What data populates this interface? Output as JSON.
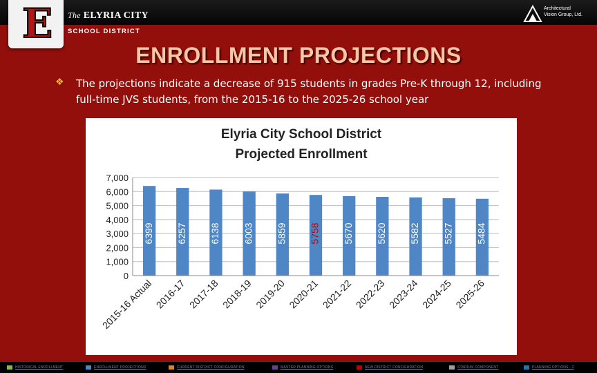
{
  "header": {
    "logo_letter": "E",
    "district_the": "The",
    "district_name": "ELYRIA CITY",
    "district_sub": "SCHOOL DISTRICT",
    "firm_line1": "Architectural",
    "firm_line2": "Vision Group, Ltd."
  },
  "slide": {
    "title": "ENROLLMENT PROJECTIONS",
    "bullet": "The projections indicate a decrease of 915 students in grades Pre-K through 12, including full-time JVS students, from the 2015-16 to the 2025-26 school year"
  },
  "chart_data": {
    "type": "bar",
    "title_line1": "Elyria City School District",
    "title_line2": "Projected Enrollment",
    "categories": [
      "2015-16 Actual",
      "2016-17",
      "2017-18",
      "2018-19",
      "2019-20",
      "2020-21",
      "2021-22",
      "2022-23",
      "2023-24",
      "2024-25",
      "2025-26"
    ],
    "values": [
      6399,
      6257,
      6138,
      6003,
      5859,
      5758,
      5670,
      5620,
      5582,
      5527,
      5484
    ],
    "data_labels": [
      "6399",
      "6257",
      "6138",
      "6003",
      "5859",
      "5758",
      "5670",
      "5620",
      "5582",
      "5527",
      "5484"
    ],
    "ylim": [
      0,
      7000
    ],
    "yticks": [
      0,
      1000,
      2000,
      3000,
      4000,
      5000,
      6000,
      7000
    ],
    "ytick_labels": [
      "0",
      "1,000",
      "2,000",
      "3,000",
      "4,000",
      "5,000",
      "6,000",
      "7,000"
    ],
    "grid": true,
    "bar_color": "#4f86c6",
    "label_color": "#ffffff",
    "highlight_label_color": "#c00000",
    "highlight_index": 5
  },
  "footer": {
    "nav": [
      {
        "label": "HISTORICAL ENROLLMENT",
        "color": "#7fbf3f"
      },
      {
        "label": "ENROLLMENT PROJECTIONS",
        "color": "#4f86c6"
      },
      {
        "label": "CURRENT DISTRICT CONFIGURATION",
        "color": "#e0802a"
      },
      {
        "label": "MASTER PLANNING OPTIONS",
        "color": "#6a3d9a"
      },
      {
        "label": "NEW DISTRICT CONFIGURATION",
        "color": "#c00000"
      },
      {
        "label": "STADIUM COMPONENT",
        "color": "#a0a0a0"
      },
      {
        "label": "PLANNING OPTIONS - 2",
        "color": "#1f78b4"
      }
    ]
  }
}
